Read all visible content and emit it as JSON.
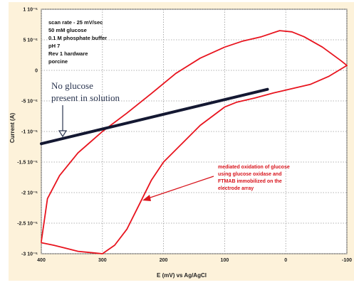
{
  "chart_data": {
    "type": "line",
    "xlabel": "E (mV) vs Ag/AgCl",
    "ylabel": "Current (A)",
    "x_reversed": true,
    "xlim": [
      400,
      -100
    ],
    "ylim": [
      -3e-05,
      1e-05
    ],
    "x_ticks": [
      {
        "value": 400,
        "label": "400"
      },
      {
        "value": 300,
        "label": "300"
      },
      {
        "value": 200,
        "label": "200"
      },
      {
        "value": 100,
        "label": "100"
      },
      {
        "value": 0,
        "label": "0"
      },
      {
        "value": -100,
        "label": "-100"
      }
    ],
    "y_ticks": [
      {
        "value": 1e-05,
        "label": "1 10⁻⁵"
      },
      {
        "value": 5e-06,
        "label": "5 10⁻⁶"
      },
      {
        "value": 0,
        "label": "0"
      },
      {
        "value": -5e-06,
        "label": "-5 10⁻⁶"
      },
      {
        "value": -1e-05,
        "label": "-1 10⁻⁵"
      },
      {
        "value": -1.5e-05,
        "label": "-1.5 10⁻⁵"
      },
      {
        "value": -2e-05,
        "label": "-2 10⁻⁵"
      },
      {
        "value": -2.5e-05,
        "label": "-2.5 10⁻⁵"
      },
      {
        "value": -3e-05,
        "label": "-3 10⁻⁵"
      }
    ],
    "grid": true,
    "series": [
      {
        "color": "#e8141e",
        "x": [
          400,
          390,
          370,
          340,
          300,
          260,
          220,
          180,
          140,
          100,
          70,
          40,
          10,
          -10,
          -30,
          -60,
          -90,
          -100
        ],
        "y": [
          -2.8e-05,
          -2.1e-05,
          -1.72e-05,
          -1.35e-05,
          -1e-05,
          -7e-06,
          -3.8e-06,
          -5e-07,
          2e-06,
          3.8e-06,
          4.8e-06,
          5.5e-06,
          6.5e-06,
          6.3e-06,
          5.5e-06,
          3.8e-06,
          1.6e-06,
          8e-07
        ]
      },
      {
        "color": "#e8141e",
        "x": [
          -100,
          -70,
          -40,
          -10,
          20,
          50,
          80,
          100,
          140,
          170,
          200,
          220,
          240,
          260,
          280,
          300,
          320,
          340,
          360,
          380,
          400
        ],
        "y": [
          8e-07,
          -1e-06,
          -2.3e-06,
          -3e-06,
          -3.7e-06,
          -4.5e-06,
          -5.2e-06,
          -6e-06,
          -9e-06,
          -1.2e-05,
          -1.5e-05,
          -1.8e-05,
          -2.2e-05,
          -2.6e-05,
          -2.86e-05,
          -3e-05,
          -2.98e-05,
          -2.96e-05,
          -2.91e-05,
          -2.86e-05,
          -2.82e-05
        ]
      },
      {
        "color": "#141832",
        "x": [
          400,
          30
        ],
        "y": [
          -1.2e-05,
          -3.1e-06
        ]
      }
    ],
    "annotations": {
      "conditions": [
        "scan rate - 25 mV/sec",
        "50 mM glucose",
        "0.1 M phosphate buffer",
        "pH 7",
        "Rev 1 hardware",
        "porcine"
      ],
      "no_glucose": [
        "No glucose",
        "present in solution"
      ],
      "oxidation": [
        "mediated oxidation of glucose",
        "using glucose oxidase and",
        "FTMAB immobilized on the",
        "electrode array"
      ]
    }
  }
}
